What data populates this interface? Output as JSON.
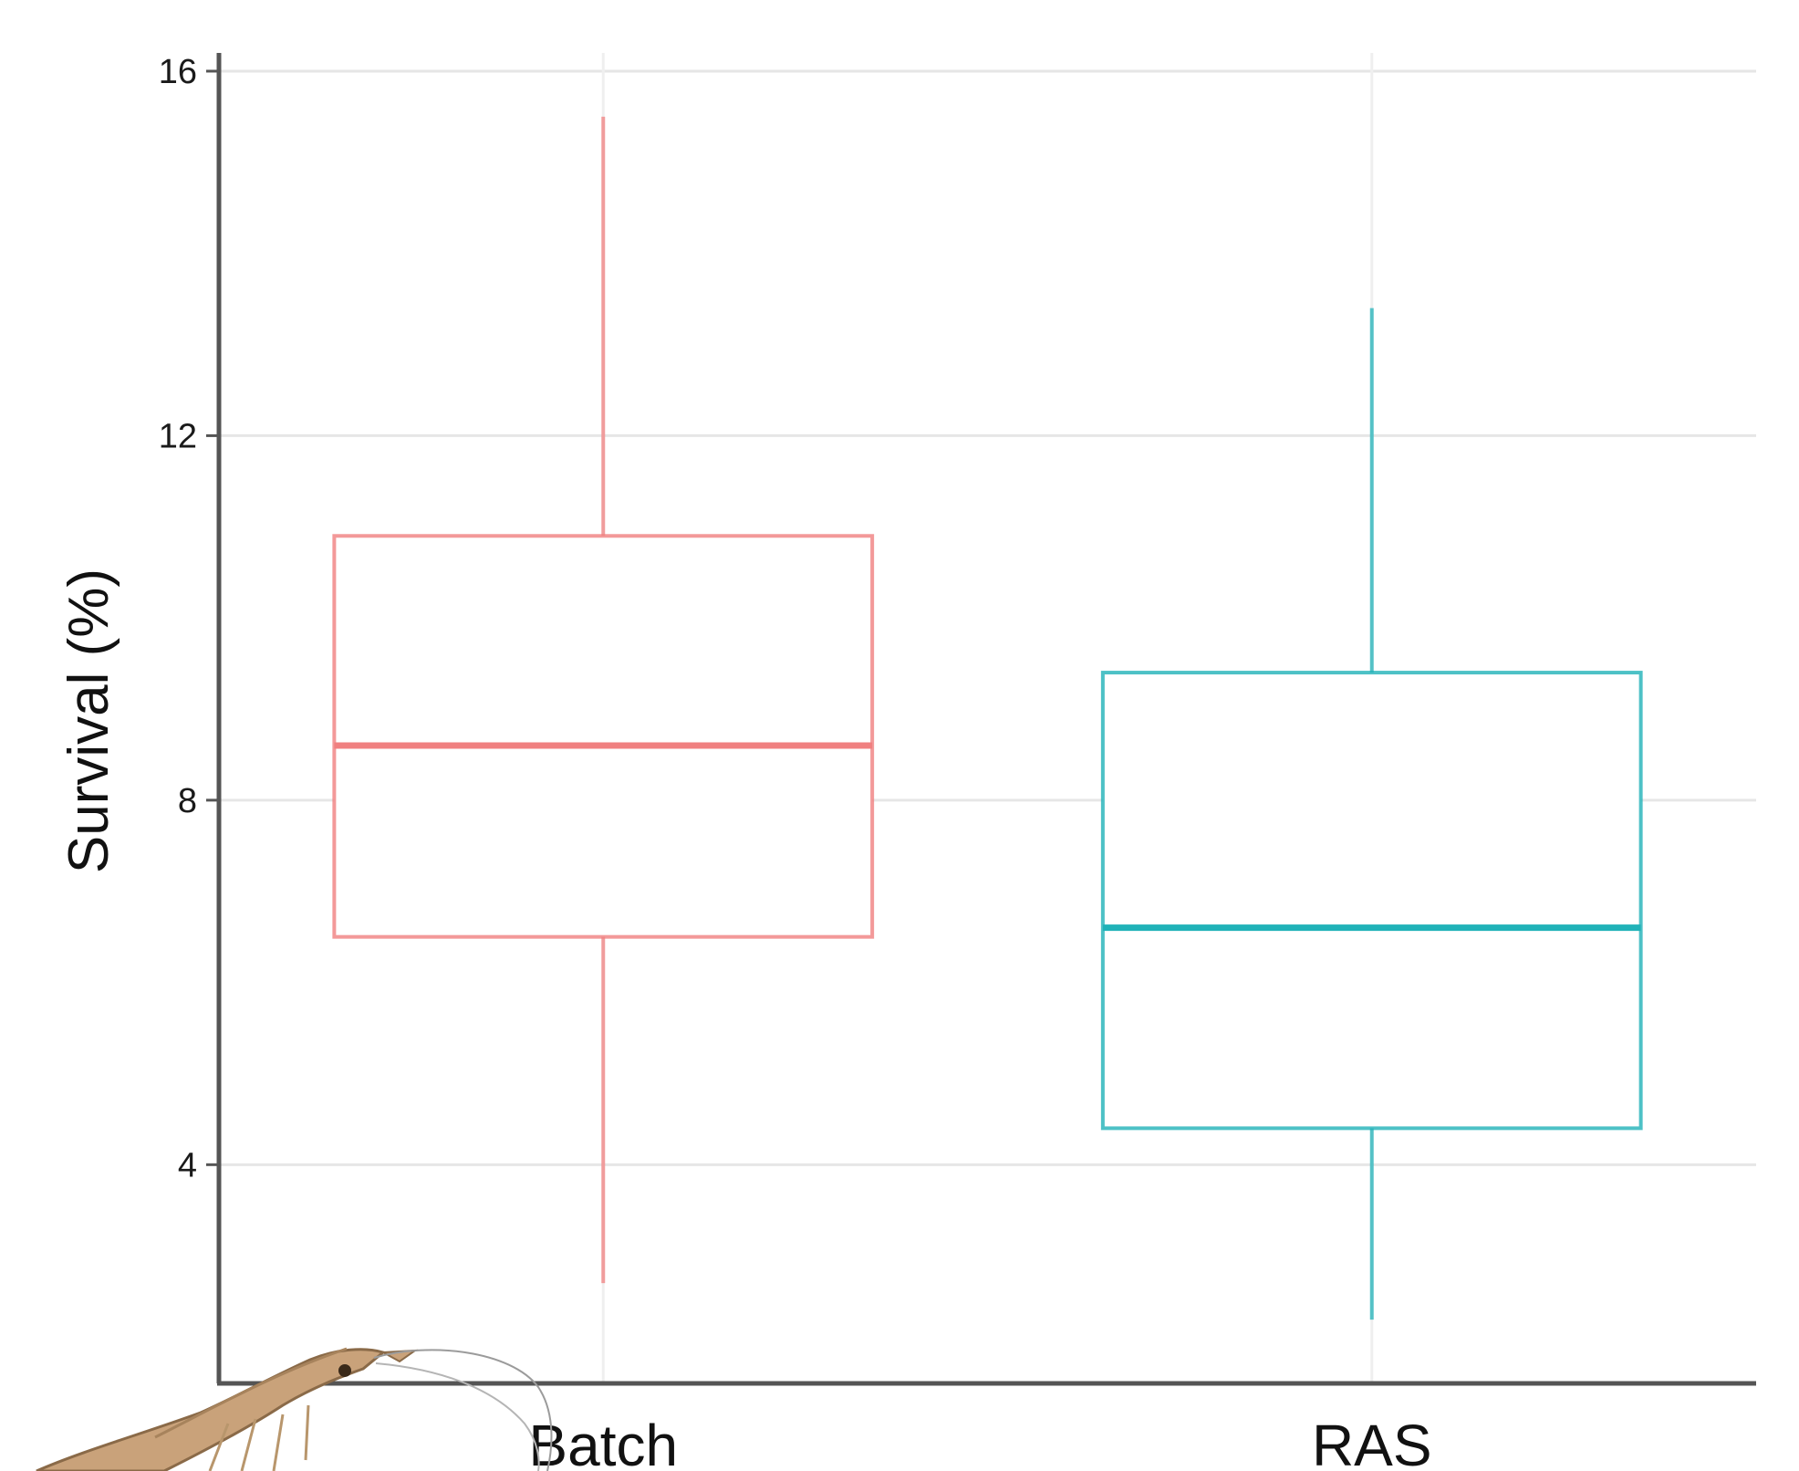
{
  "chart_data": {
    "type": "box",
    "title": "",
    "xlabel": "",
    "ylabel": "Survival (%)",
    "ylim": [
      1.6,
      16.2
    ],
    "y_ticks": [
      4,
      8,
      12,
      16
    ],
    "y_tick_labels": [
      "4",
      "8",
      "12",
      "16"
    ],
    "grid": true,
    "legend": "none",
    "categories": [
      "Batch",
      "RAS"
    ],
    "series": [
      {
        "category": "Batch",
        "color": "#f08080",
        "whisker_low": 2.7,
        "q1": 6.5,
        "median": 8.6,
        "q3": 10.9,
        "whisker_high": 15.5
      },
      {
        "category": "RAS",
        "color": "#20b2b8",
        "whisker_low": 2.3,
        "q1": 4.4,
        "median": 6.6,
        "q3": 9.4,
        "whisker_high": 13.4
      }
    ],
    "decoration": "shrimp-illustration"
  }
}
